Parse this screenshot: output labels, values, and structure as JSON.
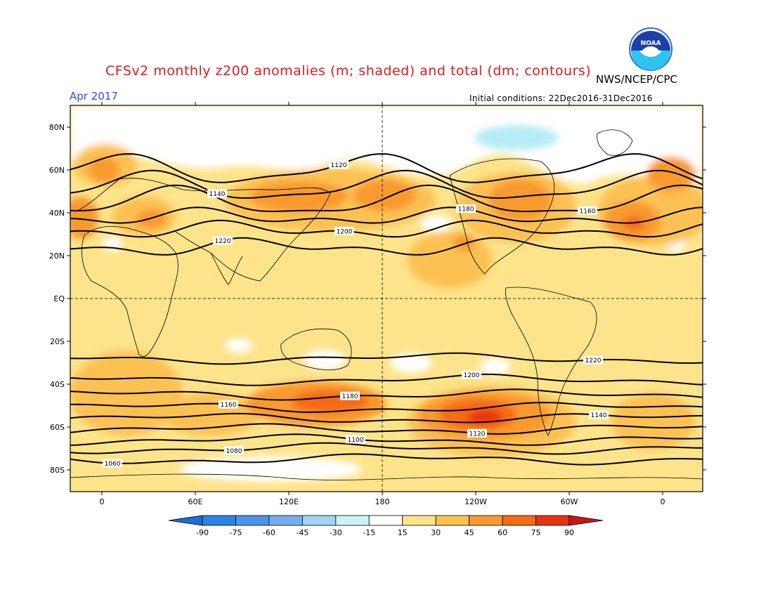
{
  "title": "CFSv2 monthly z200 anomalies (m; shaded) and total (dm; contours)",
  "agency": "NWS/NCEP/CPC",
  "valid_month": "Apr 2017",
  "initial_conditions": "Initial conditions: 22Dec2016-31Dec2016",
  "logo_text": "NOAA",
  "colors": {
    "title": "#e31a1c",
    "month": "#2a4cff",
    "base": "#fde38a",
    "neutral": "#ffffff",
    "light_blue": "#b5ecf5"
  },
  "lat_labels": [
    "80N",
    "60N",
    "40N",
    "20N",
    "EQ",
    "20S",
    "40S",
    "60S",
    "80S"
  ],
  "lon_labels": [
    "0",
    "60E",
    "120E",
    "180",
    "120W",
    "60W",
    "0"
  ],
  "colorbar": {
    "labels": [
      "-90",
      "-75",
      "-60",
      "-45",
      "-30",
      "-15",
      "15",
      "30",
      "45",
      "60",
      "75",
      "90"
    ],
    "colors": [
      "#1b6fd8",
      "#2c82e6",
      "#4a95ec",
      "#74aef0",
      "#a2d4f5",
      "#c9f3f6",
      "#ffffff",
      "#fde38a",
      "#fcc152",
      "#f89a2f",
      "#f56a15",
      "#e73311",
      "#c71810"
    ]
  },
  "contours": [
    {
      "label": "1060",
      "latitude": -75
    },
    {
      "label": "1080",
      "latitude": -70
    },
    {
      "label": "1100",
      "latitude": -66
    },
    {
      "label": "1120",
      "latitude": -61
    },
    {
      "label": "1140",
      "latitude": -56
    },
    {
      "label": "1160",
      "latitude": -51
    },
    {
      "label": "1180",
      "latitude": -45
    },
    {
      "label": "1200",
      "latitude": -38
    },
    {
      "label": "1220",
      "latitude": -28
    },
    {
      "label": "1220",
      "latitude": 24
    },
    {
      "label": "1200",
      "latitude": 32
    },
    {
      "label": "1180",
      "latitude": 38
    },
    {
      "label": "1160",
      "latitude": 45
    },
    {
      "label": "1140",
      "latitude": 52
    },
    {
      "label": "1120",
      "latitude": 60
    }
  ]
}
